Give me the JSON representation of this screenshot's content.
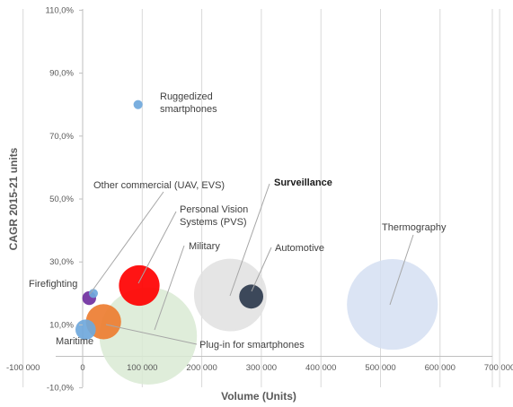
{
  "chart_data": {
    "type": "bubble",
    "xlabel": "Volume (Units)",
    "ylabel": "CAGR 2015-21 units",
    "xlim": [
      -100000,
      700000
    ],
    "ylim": [
      -10,
      110
    ],
    "x_ticks": [
      {
        "value": -100000,
        "label": "-100 000"
      },
      {
        "value": 0,
        "label": "0"
      },
      {
        "value": 100000,
        "label": "100 000"
      },
      {
        "value": 200000,
        "label": "200 000"
      },
      {
        "value": 300000,
        "label": "300 000"
      },
      {
        "value": 400000,
        "label": "400 000"
      },
      {
        "value": 500000,
        "label": "500 000"
      },
      {
        "value": 600000,
        "label": "600 000"
      },
      {
        "value": 700000,
        "label": "700 000"
      }
    ],
    "y_ticks": [
      {
        "value": 110,
        "label": "110,0%"
      },
      {
        "value": 90,
        "label": "90,0%"
      },
      {
        "value": 70,
        "label": "70,0%"
      },
      {
        "value": 50,
        "label": "50,0%"
      },
      {
        "value": 30,
        "label": "30,0%"
      },
      {
        "value": 10,
        "label": "10,0%"
      },
      {
        "value": -10,
        "label": "-10,0%"
      }
    ],
    "grid": "vertical",
    "series": [
      {
        "name": "Ruggedized smartphones",
        "x": 93000,
        "y": 80,
        "size": 0.1,
        "color": "#6fa8dc",
        "label_lines": [
          "Ruggedized",
          "smartphones"
        ]
      },
      {
        "name": "Other commercial (UAV, EVS)",
        "x": 18000,
        "y": 20,
        "size": 0.1,
        "color": "#6fa8dc",
        "label_lines": [
          "Other commercial (UAV, EVS)"
        ]
      },
      {
        "name": "Personal Vision Systems (PVS)",
        "x": 95000,
        "y": 22.5,
        "size": 2.0,
        "color": "#ff0000",
        "label_lines": [
          "Personal Vision",
          "Systems (PVS)"
        ]
      },
      {
        "name": "Military",
        "x": 110000,
        "y": 6.5,
        "size": 11.5,
        "color": "#d9ead3",
        "label_lines": [
          "Military"
        ]
      },
      {
        "name": "Surveillance",
        "x": 248000,
        "y": 19.5,
        "size": 6.4,
        "color": "#e0e0e0",
        "label_lines": [
          "Surveillance"
        ],
        "bold": true
      },
      {
        "name": "Automotive",
        "x": 283000,
        "y": 19,
        "size": 0.7,
        "color": "#2e3b4e",
        "label_lines": [
          "Automotive"
        ]
      },
      {
        "name": "Thermography",
        "x": 520000,
        "y": 16.5,
        "size": 10.0,
        "color": "#d5dff2",
        "label_lines": [
          "Thermography"
        ]
      },
      {
        "name": "Firefighting",
        "x": 11000,
        "y": 18.5,
        "size": 0.23,
        "color": "#7030a0",
        "label_lines": [
          "Firefighting"
        ]
      },
      {
        "name": "Maritime",
        "x": 5000,
        "y": 8.5,
        "size": 0.5,
        "color": "#6fa8dc",
        "label_lines": [
          "Maritime"
        ]
      },
      {
        "name": "Plug-in for smartphones",
        "x": 35000,
        "y": 11,
        "size": 1.5,
        "color": "#ed7d31",
        "label_lines": [
          "Plug-in for smartphones"
        ]
      }
    ]
  }
}
